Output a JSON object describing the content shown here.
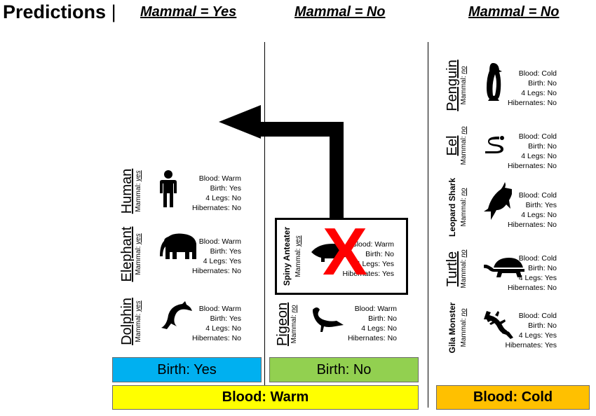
{
  "title": "Predictions",
  "title_separator": "|",
  "columns": [
    {
      "header": "Mammal = Yes"
    },
    {
      "header": "Mammal = No"
    },
    {
      "header": "Mammal = No"
    }
  ],
  "labels": {
    "mammal": "Mammal:"
  },
  "warm_yes": [
    {
      "name": "Human",
      "mammal": "yes",
      "icon": "person-icon",
      "facts": [
        "Blood: Warm",
        "Birth: Yes",
        "4 Legs: No",
        "Hibernates: No"
      ]
    },
    {
      "name": "Elephant",
      "mammal": "yes",
      "icon": "elephant-icon",
      "facts": [
        "Blood: Warm",
        "Birth: Yes",
        "4 Legs: Yes",
        "Hibernates: No"
      ]
    },
    {
      "name": "Dolphin",
      "mammal": "yes",
      "icon": "dolphin-icon",
      "facts": [
        "Blood: Warm",
        "Birth: Yes",
        "4 Legs: No",
        "Hibernates: No"
      ]
    }
  ],
  "warm_no": [
    {
      "name": "Spiny Anteater",
      "mammal": "yes",
      "icon": "anteater-icon",
      "facts": [
        "Blood: Warm",
        "Birth: No",
        "4 Legs: Yes",
        "Hibernates: Yes"
      ],
      "marked_wrong": true
    },
    {
      "name": "Pigeon",
      "mammal": "no",
      "icon": "pigeon-icon",
      "facts": [
        "Blood: Warm",
        "Birth: No",
        "4 Legs: No",
        "Hibernates: No"
      ]
    }
  ],
  "cold": [
    {
      "name": "Penguin",
      "mammal": "no",
      "icon": "penguin-icon",
      "facts": [
        "Blood: Cold",
        "Birth: No",
        "4 Legs: No",
        "Hibernates: No"
      ]
    },
    {
      "name": "Eel",
      "mammal": "no",
      "icon": "eel-icon",
      "facts": [
        "Blood: Cold",
        "Birth: No",
        "4 Legs: No",
        "Hibernates: No"
      ]
    },
    {
      "name": "Leopard Shark",
      "mammal": "no",
      "icon": "shark-icon",
      "facts": [
        "Blood: Cold",
        "Birth: Yes",
        "4 Legs: No",
        "Hibernates: No"
      ]
    },
    {
      "name": "Turtle",
      "mammal": "no",
      "icon": "turtle-icon",
      "facts": [
        "Blood: Cold",
        "Birth: No",
        "4 Legs: Yes",
        "Hibernates: No"
      ]
    },
    {
      "name": "Gila Monster",
      "mammal": "no",
      "icon": "lizard-icon",
      "facts": [
        "Blood: Cold",
        "Birth: No",
        "4 Legs: Yes",
        "Hibernates: Yes"
      ]
    }
  ],
  "bars": {
    "birth_yes": {
      "label": "Birth: Yes",
      "color": "#00B0F0"
    },
    "birth_no": {
      "label": "Birth: No",
      "color": "#92D050"
    },
    "blood_warm": {
      "label": "Blood: Warm",
      "color": "#FFFF00"
    },
    "blood_cold": {
      "label": "Blood: Cold",
      "color": "#FFC000"
    }
  },
  "colors": {
    "wrong_mark": "#FF0000",
    "arrow": "#000000"
  },
  "wrong_mark": "X"
}
